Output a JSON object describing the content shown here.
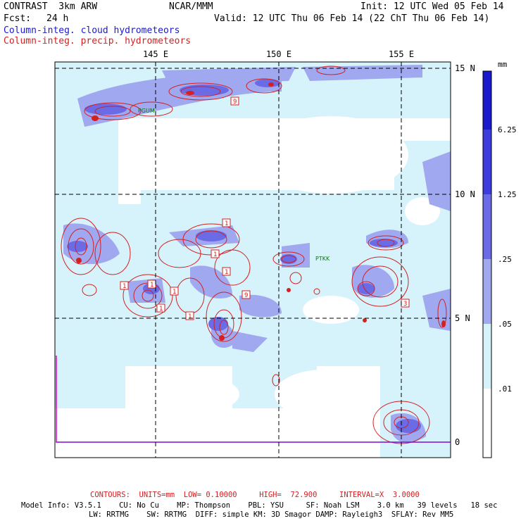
{
  "header": {
    "title": "CONTRAST  3km ARW",
    "center": "NCAR/MMM",
    "init": "Init: 12 UTC Wed 05 Feb 14",
    "fcst_label": "Fcst:",
    "fcst_value": "24 h",
    "valid": "Valid: 12 UTC Thu 06 Feb 14 (22 ChT Thu 06 Feb 14)"
  },
  "legend": {
    "cloud": "Column-integ. cloud hydrometeors",
    "precip": "Column-integ. precip. hydrometeors"
  },
  "map": {
    "lon_labels": [
      "145 E",
      "150 E",
      "155 E"
    ],
    "lat_labels": [
      "15 N",
      "10 N",
      "5 N",
      "0"
    ],
    "station": "PTKK",
    "station_ne": "PGUM",
    "contour_tags": [
      "1",
      "1",
      "1",
      "1",
      "1",
      "1",
      "1",
      "1",
      "9",
      "9",
      "3"
    ]
  },
  "colorbar": {
    "unit": "mm",
    "levels": [
      "6.25",
      "1.25",
      ".25",
      ".05",
      ".01"
    ],
    "colors": [
      "#1a1acc",
      "#3d3dde",
      "#6b6be6",
      "#a0a8f0",
      "#d6f2fa",
      "#ffffff"
    ]
  },
  "footer": {
    "contours": "CONTOURS:  UNITS=mm  LOW= 0.10000     HIGH=  72.900     INTERVAL=X  3.0000",
    "model_line1": "Model Info: V3.5.1    CU: No Cu    MP: Thompson    PBL: YSU     SF: Noah LSM    3.0 km   39 levels   18 sec",
    "model_line2": "LW: RRTMG    SW: RRTMG  DIFF: simple KM: 3D Smagor DAMP: Rayleigh3  SFLAY: Rev MM5"
  },
  "colors": {
    "cloud_light": "#d6f2fa",
    "cloud_mid": "#a0a8f0",
    "cloud_dark": "#6b6be6",
    "precip_contour": "#d42020",
    "boundary": "#e000e0"
  }
}
